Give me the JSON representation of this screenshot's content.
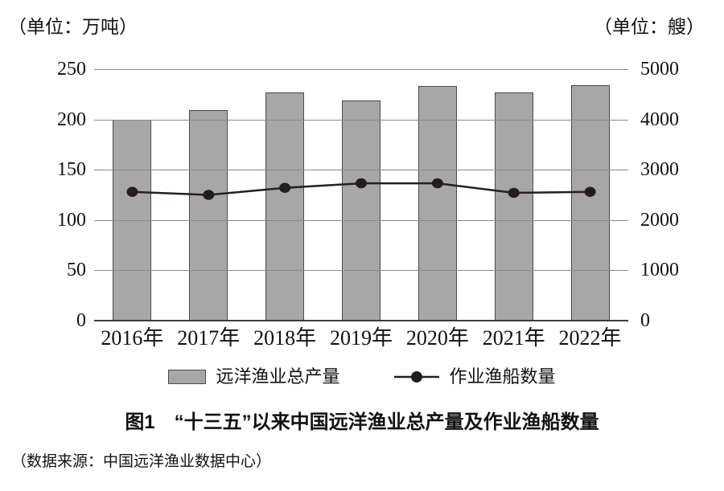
{
  "figure": {
    "title": "图1　“十三五”以来中国远洋渔业总产量及作业渔船数量",
    "source": "（数据来源：中国远洋渔业数据中心）"
  },
  "chart_data": {
    "type": "bar+line",
    "title": "图1 “十三五”以来中国远洋渔业总产量及作业渔船数量",
    "source": "（数据来源：中国远洋渔业数据中心）",
    "categories": [
      "2016年",
      "2017年",
      "2018年",
      "2019年",
      "2020年",
      "2021年",
      "2022年"
    ],
    "series": [
      {
        "name": "远洋渔业总产量",
        "type": "bar",
        "axis": "left",
        "values": [
          200,
          209,
          227,
          219,
          233,
          227,
          234
        ]
      },
      {
        "name": "作业渔船数量",
        "type": "line",
        "axis": "right",
        "values": [
          2560,
          2500,
          2640,
          2730,
          2730,
          2540,
          2560
        ]
      }
    ],
    "left_axis": {
      "unit_label": "（单位：万吨）",
      "ticks": [
        0,
        50,
        100,
        150,
        200,
        250
      ],
      "max": 250
    },
    "right_axis": {
      "unit_label": "（单位：艘）",
      "ticks": [
        0,
        1000,
        2000,
        3000,
        4000,
        5000
      ],
      "max": 5000
    },
    "legend_position": "bottom",
    "grid": true,
    "colors": {
      "bar_fill": "#a7a7a7",
      "bar_border": "#4a4a4a",
      "line": "#261e20",
      "dot": "#241c1e",
      "grid": "#8a8a8a",
      "axis": "#3d3d3d",
      "text": "#111111"
    }
  }
}
